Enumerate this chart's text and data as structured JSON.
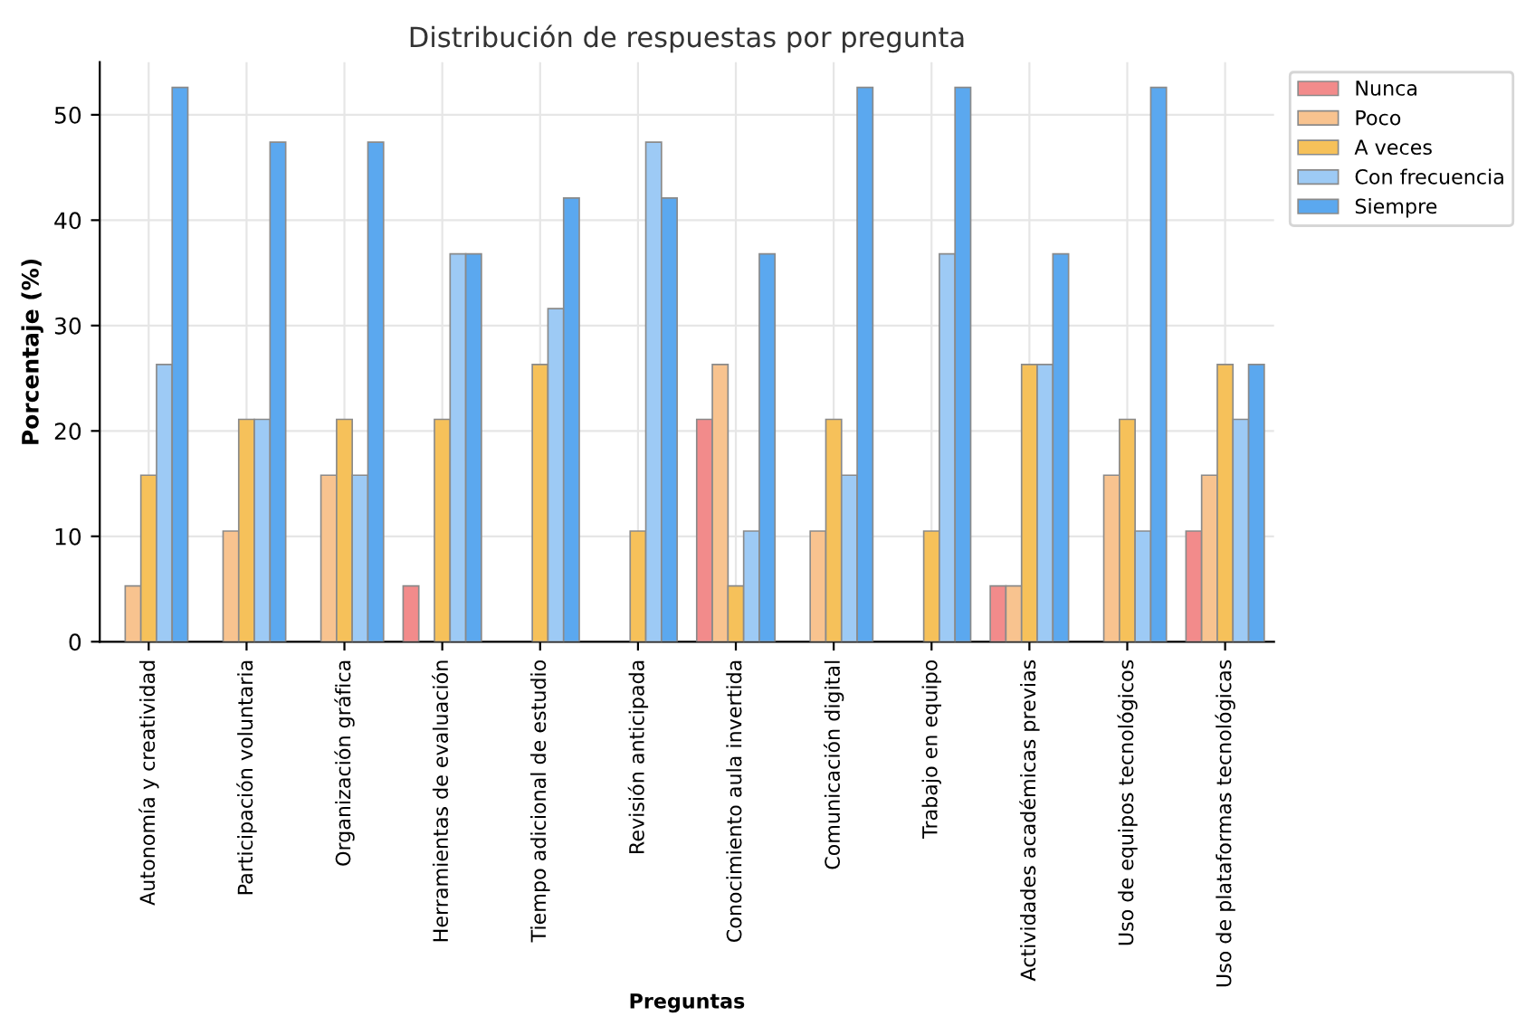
{
  "chart_data": {
    "type": "bar",
    "title": "Distribución de respuestas por pregunta",
    "xlabel": "Preguntas",
    "ylabel": "Porcentaje (%)",
    "categories": [
      "Autonomía y creatividad",
      "Participación voluntaria",
      "Organización gráfica",
      "Herramientas de evaluación",
      "Tiempo adicional de estudio",
      "Revisión anticipada",
      "Conocimiento aula invertida",
      "Comunicación digital",
      "Trabajo en equipo",
      "Actividades académicas previas",
      "Uso de equipos tecnológicos",
      "Uso de plataformas tecnológicas"
    ],
    "series": [
      {
        "name": "Nunca",
        "color": "#f28b8b",
        "values": [
          0,
          0,
          0,
          5.3,
          0,
          0,
          21.1,
          0,
          0,
          5.3,
          0,
          10.5
        ]
      },
      {
        "name": "Poco",
        "color": "#f8c38f",
        "values": [
          5.3,
          10.5,
          15.8,
          0,
          0,
          0,
          26.3,
          10.5,
          0,
          5.3,
          15.8,
          15.8
        ]
      },
      {
        "name": "A veces",
        "color": "#f6c15a",
        "values": [
          15.8,
          21.1,
          21.1,
          21.1,
          26.3,
          10.5,
          5.3,
          21.1,
          10.5,
          26.3,
          21.1,
          26.3
        ]
      },
      {
        "name": "Con frecuencia",
        "color": "#9dcaf5",
        "values": [
          26.3,
          21.1,
          15.8,
          36.8,
          31.6,
          47.4,
          10.5,
          15.8,
          36.8,
          26.3,
          10.5,
          21.1
        ]
      },
      {
        "name": "Siempre",
        "color": "#5ba8ef",
        "values": [
          52.6,
          47.4,
          47.4,
          36.8,
          42.1,
          42.1,
          36.8,
          52.6,
          52.6,
          36.8,
          52.6,
          26.3
        ]
      }
    ],
    "ylim": [
      0,
      55
    ],
    "yticks": [
      0,
      10,
      20,
      30,
      40,
      50
    ],
    "grid": true,
    "legend": "right"
  }
}
